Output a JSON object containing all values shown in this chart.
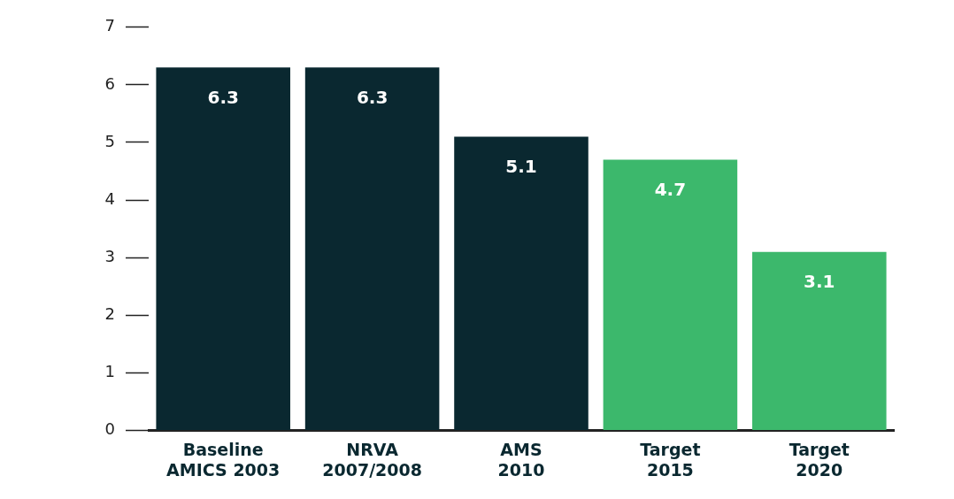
{
  "chart_data": {
    "type": "bar",
    "categories": [
      "Baseline AMICS 2003",
      "NRVA 2007/2008",
      "AMS 2010",
      "Target 2015",
      "Target 2020"
    ],
    "values": [
      6.3,
      6.3,
      5.1,
      4.7,
      3.1
    ],
    "colors": [
      "#0a2830",
      "#0a2830",
      "#0a2830",
      "#3cb86c",
      "#3cb86c"
    ],
    "ylim": [
      0,
      7
    ],
    "yticks": [
      0,
      1,
      2,
      3,
      4,
      5,
      6,
      7
    ],
    "grid": false,
    "legend": false,
    "data_labels": true
  }
}
